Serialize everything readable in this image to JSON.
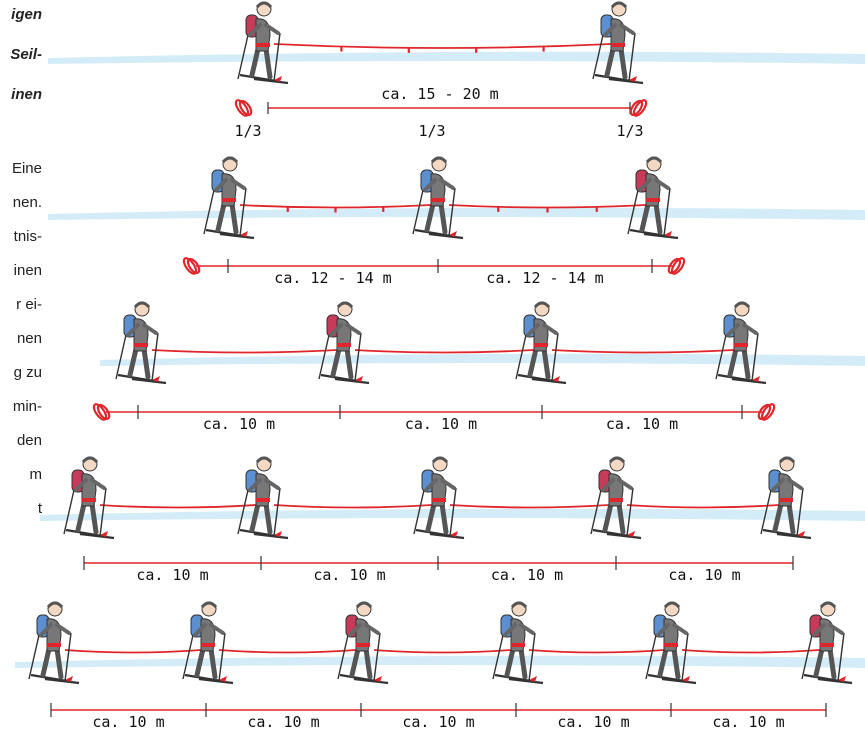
{
  "left_column_text": {
    "heading_fragments": [
      "igen",
      "Seil-",
      "inen"
    ],
    "body_fragments": [
      "Eine",
      "nen.",
      "tnis-",
      "inen",
      "r ei-",
      "nen",
      "g zu",
      "min-",
      "den",
      "m",
      "t"
    ]
  },
  "rope_colors": {
    "rope": "#e0262b",
    "snow": "#d4ecf7"
  },
  "rows": [
    {
      "skiers": 2,
      "span_label": "ca. 15 - 20 m",
      "fraction_labels": [
        "1/3",
        "1/3",
        "1/3"
      ]
    },
    {
      "skiers": 3,
      "segment_labels": [
        "ca. 12 - 14 m",
        "ca. 12 - 14 m"
      ]
    },
    {
      "skiers": 4,
      "segment_labels": [
        "ca. 10 m",
        "ca. 10 m",
        "ca. 10 m"
      ]
    },
    {
      "skiers": 5,
      "segment_labels": [
        "ca. 10 m",
        "ca. 10 m",
        "ca. 10 m",
        "ca. 10 m"
      ]
    },
    {
      "skiers": 6,
      "segment_labels": [
        "ca. 10 m",
        "ca. 10 m",
        "ca. 10 m",
        "ca. 10 m",
        "ca. 10 m"
      ]
    }
  ]
}
